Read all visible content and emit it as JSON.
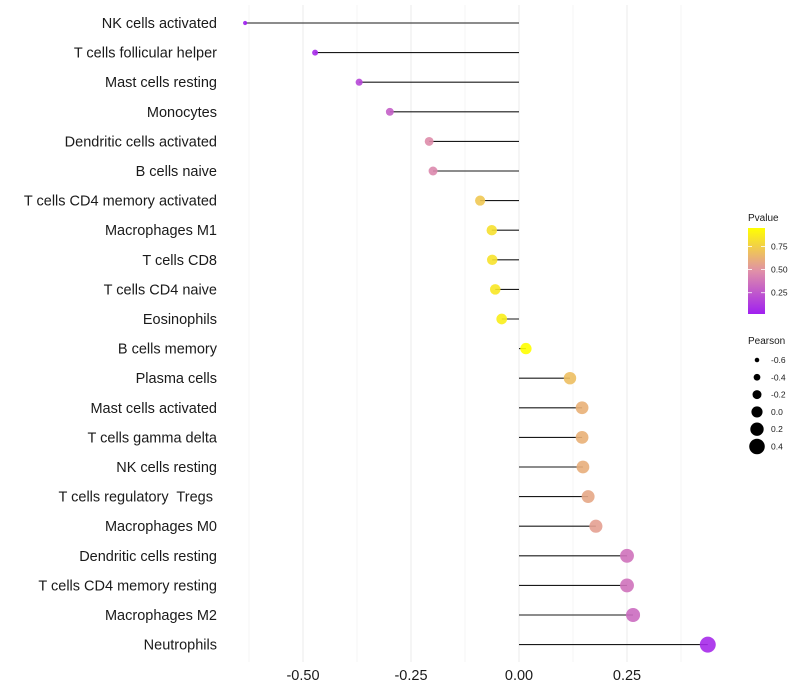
{
  "chart_data": {
    "type": "lollipop",
    "title": "",
    "xlabel": "",
    "ylabel": "",
    "xlim": [
      -0.66,
      0.5
    ],
    "xticks": [
      -0.5,
      -0.25,
      0.0,
      0.25
    ],
    "xtick_labels": [
      "-0.50",
      "-0.25",
      "0.00",
      "0.25"
    ],
    "grid": true,
    "baseline": 0,
    "categories": [
      "NK cells activated",
      "T cells follicular helper",
      "Mast cells resting",
      "Monocytes",
      "Dendritic cells activated",
      "B cells naive",
      "T cells CD4 memory activated",
      "Macrophages M1",
      "T cells CD8",
      "T cells CD4 naive",
      "Eosinophils",
      "B cells memory",
      "Plasma cells",
      "Mast cells activated",
      "T cells gamma delta",
      "NK cells resting",
      "T cells regulatory  Tregs ",
      "Macrophages M0",
      "Dendritic cells resting",
      "T cells CD4 memory resting",
      "Macrophages M2",
      "Neutrophils"
    ],
    "pearson": [
      -0.634,
      -0.472,
      -0.37,
      -0.299,
      -0.208,
      -0.199,
      -0.09,
      -0.063,
      -0.062,
      -0.055,
      -0.04,
      0.016,
      0.118,
      0.146,
      0.146,
      0.148,
      0.16,
      0.178,
      0.25,
      0.25,
      0.264,
      0.437
    ],
    "pvalue": [
      0.02,
      0.06,
      0.18,
      0.28,
      0.47,
      0.45,
      0.72,
      0.82,
      0.83,
      0.85,
      0.88,
      0.95,
      0.68,
      0.62,
      0.62,
      0.61,
      0.58,
      0.55,
      0.36,
      0.36,
      0.33,
      0.06
    ],
    "legends": {
      "color": {
        "title": "Pvalue",
        "range": [
          0.02,
          0.95
        ],
        "ticks": [
          0.25,
          0.5,
          0.75
        ],
        "tick_labels": [
          "0.25",
          "0.50",
          "0.75"
        ],
        "low_color": "#a020f0",
        "mid_color": "#e090a8",
        "high_color": "#ffff00",
        "placement": "right"
      },
      "size": {
        "title": "Pearson",
        "values": [
          -0.6,
          -0.4,
          -0.2,
          0.0,
          0.2,
          0.4
        ],
        "labels": [
          "-0.6",
          "-0.4",
          "-0.2",
          "0.0",
          "0.2",
          "0.4"
        ],
        "placement": "right"
      }
    }
  }
}
